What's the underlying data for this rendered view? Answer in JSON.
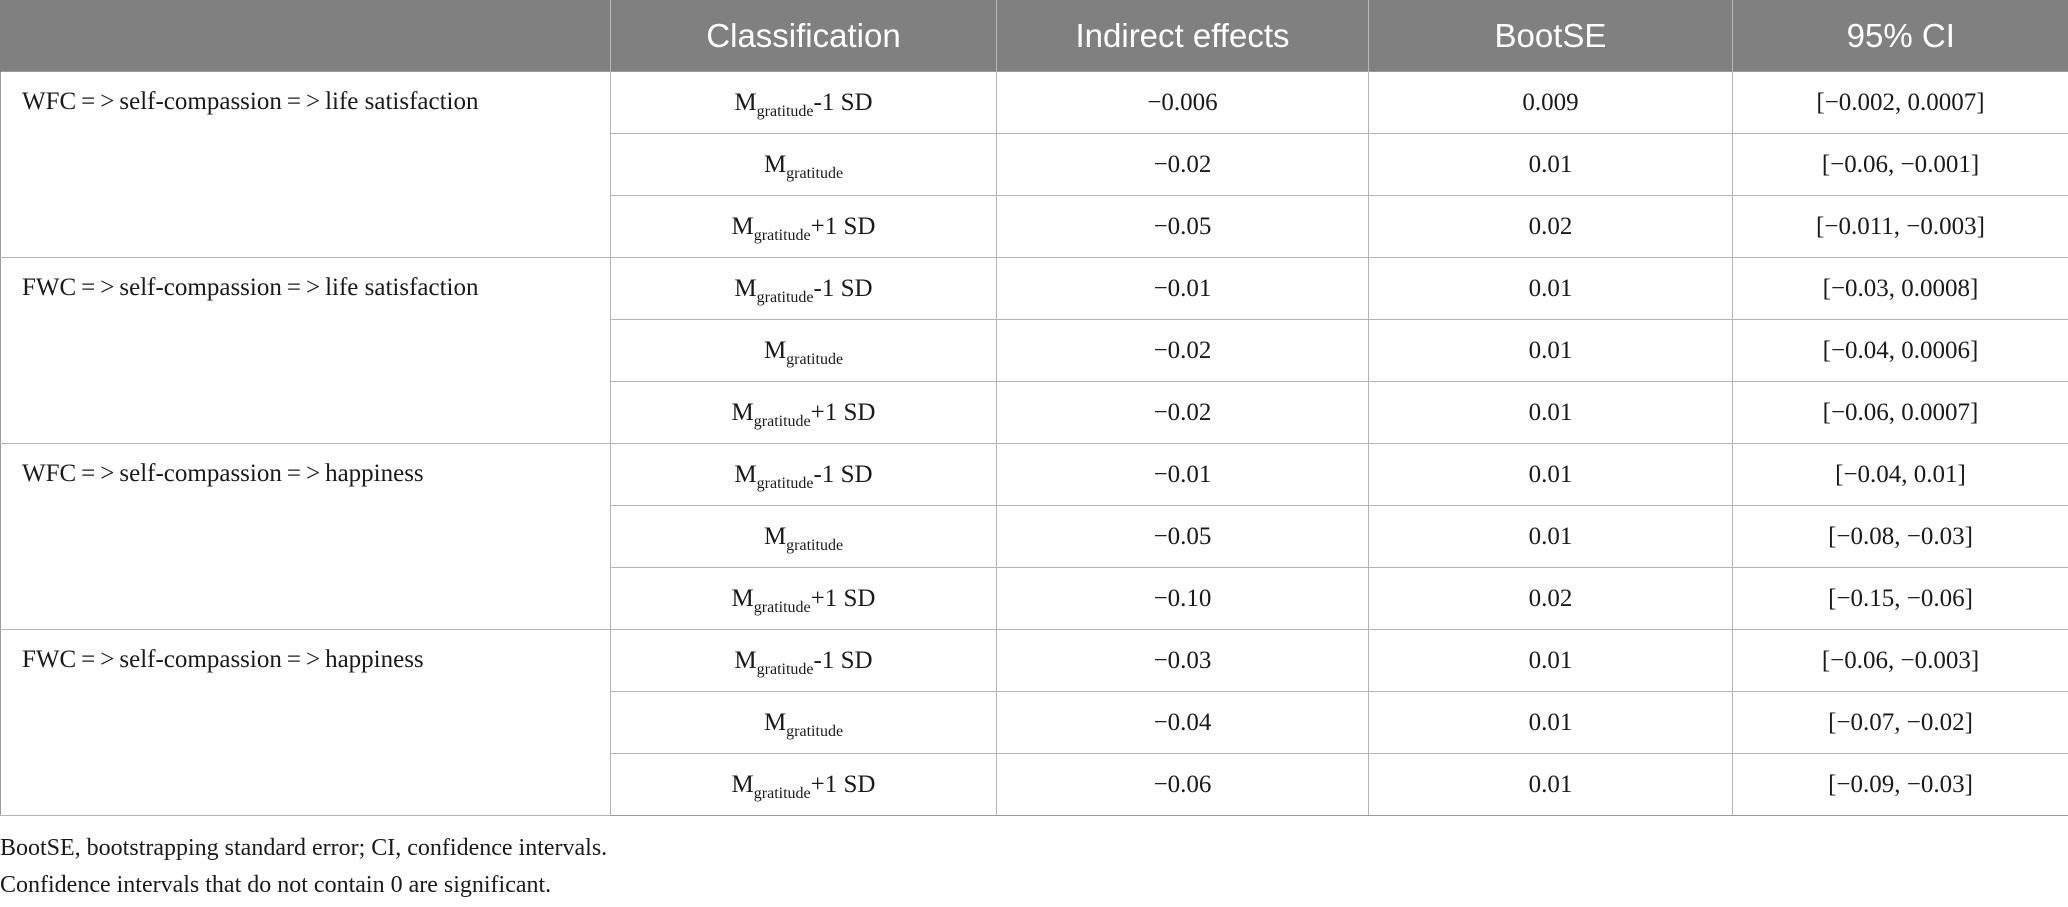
{
  "table": {
    "headers": [
      "",
      "Classification",
      "Indirect effects",
      "BootSE",
      "95% CI"
    ],
    "groups": [
      {
        "label": "WFC = > self-compassion = > life satisfaction",
        "rows": [
          {
            "base": "M",
            "sub": "gratitude",
            "suffix": "-1 SD",
            "indirect": "−0.006",
            "bootse": "0.009",
            "ci": "[−0.002, 0.0007]"
          },
          {
            "base": "M",
            "sub": "gratitude",
            "suffix": "",
            "indirect": "−0.02",
            "bootse": "0.01",
            "ci": "[−0.06, −0.001]"
          },
          {
            "base": "M",
            "sub": "gratitude",
            "suffix": "+1 SD",
            "indirect": "−0.05",
            "bootse": "0.02",
            "ci": "[−0.011, −0.003]"
          }
        ]
      },
      {
        "label": "FWC = > self-compassion = > life satisfaction",
        "rows": [
          {
            "base": "M",
            "sub": "gratitude",
            "suffix": "-1 SD",
            "indirect": "−0.01",
            "bootse": "0.01",
            "ci": "[−0.03, 0.0008]"
          },
          {
            "base": "M",
            "sub": "gratitude",
            "suffix": "",
            "indirect": "−0.02",
            "bootse": "0.01",
            "ci": "[−0.04, 0.0006]"
          },
          {
            "base": "M",
            "sub": "gratitude",
            "suffix": "+1 SD",
            "indirect": "−0.02",
            "bootse": "0.01",
            "ci": "[−0.06, 0.0007]"
          }
        ]
      },
      {
        "label": "WFC = > self-compassion = > happiness",
        "rows": [
          {
            "base": "M",
            "sub": "gratitude",
            "suffix": "-1 SD",
            "indirect": "−0.01",
            "bootse": "0.01",
            "ci": "[−0.04, 0.01]"
          },
          {
            "base": "M",
            "sub": "gratitude",
            "suffix": "",
            "indirect": "−0.05",
            "bootse": "0.01",
            "ci": "[−0.08, −0.03]"
          },
          {
            "base": "M",
            "sub": "gratitude",
            "suffix": "+1 SD",
            "indirect": "−0.10",
            "bootse": "0.02",
            "ci": "[−0.15, −0.06]"
          }
        ]
      },
      {
        "label": "FWC = > self-compassion = > happiness",
        "rows": [
          {
            "base": "M",
            "sub": "gratitude",
            "suffix": "-1 SD",
            "indirect": "−0.03",
            "bootse": "0.01",
            "ci": "[−0.06, −0.003]"
          },
          {
            "base": "M",
            "sub": "gratitude",
            "suffix": "",
            "indirect": "−0.04",
            "bootse": "0.01",
            "ci": "[−0.07, −0.02]"
          },
          {
            "base": "M",
            "sub": "gratitude",
            "suffix": "+1 SD",
            "indirect": "−0.06",
            "bootse": "0.01",
            "ci": "[−0.09, −0.03]"
          }
        ]
      }
    ]
  },
  "footnotes": [
    "BootSE, bootstrapping standard error; CI, confidence intervals.",
    "Confidence intervals that do not contain 0 are significant."
  ],
  "colors": {
    "header_background": "#808080",
    "header_text": "#ffffff",
    "body_text": "#1a1a1a",
    "grid_lines": "#b5b5b5"
  }
}
